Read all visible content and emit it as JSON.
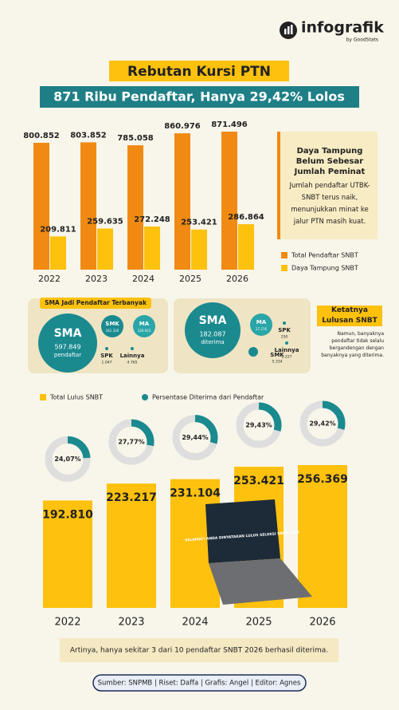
{
  "header": {
    "brand": "infografik",
    "by": "by GoodStats"
  },
  "title": "Rebutan Kursi PTN",
  "subtitle": "871 Ribu Pendaftar, Hanya 29,42% Lolos",
  "note": {
    "title": "Daya Tampung Belum Sebesar Jumlah Peminat",
    "text": "Jumlah pendaftar UTBK-SNBT terus naik, menunjukkan minat ke jalur PTN masih kuat."
  },
  "chart_data": [
    {
      "type": "bar",
      "categories": [
        "2022",
        "2023",
        "2024",
        "2025",
        "2026"
      ],
      "series": [
        {
          "name": "Total Pendaftar SNBT",
          "color": "#f08a12",
          "values": [
            800852,
            803852,
            785058,
            860976,
            871496
          ],
          "value_labels": [
            "800.852",
            "803.852",
            "785.058",
            "860.976",
            "871.496"
          ]
        },
        {
          "name": "Daya Tampung SNBT",
          "color": "#fdc10e",
          "values": [
            209811,
            259635,
            272248,
            253421,
            286864
          ],
          "value_labels": [
            "209.811",
            "259.635",
            "272.248",
            "253.421",
            "286.864"
          ]
        }
      ]
    },
    {
      "type": "bar",
      "categories": [
        "2022",
        "2023",
        "2024",
        "2025",
        "2026"
      ],
      "series": [
        {
          "name": "Total Lulus SNBT",
          "color": "#fdc10e",
          "values": [
            192810,
            223217,
            231104,
            253421,
            256369
          ],
          "value_labels": [
            "192.810",
            "223.217",
            "231.104",
            "253.421",
            "256.369"
          ]
        },
        {
          "name": "Persentase Diterima dari Pendaftar",
          "type": "donut",
          "color": "#1a8a8f",
          "values": [
            24.07,
            27.77,
            29.44,
            29.43,
            29.42
          ],
          "value_labels": [
            "24,07%",
            "27,77%",
            "29,44%",
            "29,43%",
            "29,42%"
          ]
        }
      ]
    }
  ],
  "bubbles": [
    {
      "title": "SMA Jadi Pendaftar Terbanyak",
      "items": [
        {
          "label": "SMA",
          "value": "597.849",
          "unit": "pendaftar"
        },
        {
          "label": "SMK",
          "value": "161.330"
        },
        {
          "label": "MA",
          "value": "126.923"
        },
        {
          "label": "SPK",
          "value": "1.047"
        },
        {
          "label": "Lainnya",
          "value": "4.765"
        }
      ]
    },
    {
      "title": "Ketatnya Lulusan SNBT",
      "text": "Namun, banyaknya pendaftar tidak selalu bergandengan dengan banyaknya yang diterima.",
      "items": [
        {
          "label": "SMA",
          "value": "182.087",
          "unit": "diterima"
        },
        {
          "label": "MA",
          "value": "27.276"
        },
        {
          "label": "SPK",
          "value": "250"
        },
        {
          "label": "SMK",
          "value": "5.334"
        },
        {
          "label": "Lainnya",
          "value": "1.227"
        }
      ]
    }
  ],
  "laptop_text": "SELAMAT! ANDA DINYATAKAN LULUS SELEKSI SNBP 2025",
  "conclusion": "Artinya, hanya sekitar 3 dari 10 pendaftar SNBT 2026 berhasil diterima.",
  "source": "Sumber: SNPMB | Riset: Daffa | Grafis: Angel | Editor: Agnes"
}
